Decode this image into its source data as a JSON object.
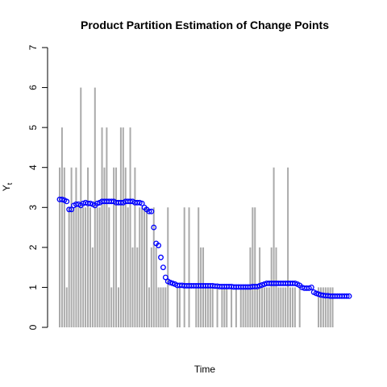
{
  "chart_data": {
    "type": "bar",
    "title": "Product Partition Estimation of Change Points",
    "xlabel": "Time",
    "ylabel": "Y",
    "ylabel_subscript": "t",
    "ylim": [
      0,
      7
    ],
    "yticks": [
      "0",
      "1",
      "2",
      "3",
      "4",
      "5",
      "6",
      "7"
    ],
    "n": 124,
    "series": [
      {
        "name": "",
        "kind": "counts",
        "color": "#aaaaaa",
        "values": [
          4,
          5,
          4,
          1,
          3,
          4,
          3,
          4,
          3,
          6,
          3,
          3,
          4,
          3,
          2,
          6,
          3,
          3,
          5,
          4,
          5,
          3,
          1,
          4,
          4,
          1,
          5,
          5,
          4,
          3,
          5,
          2,
          4,
          2,
          3,
          3,
          3,
          3,
          1,
          2,
          3,
          2,
          1,
          1,
          1,
          1,
          3,
          0,
          0,
          0,
          1,
          1,
          0,
          3,
          0,
          3,
          0,
          0,
          1,
          3,
          2,
          2,
          1,
          1,
          1,
          1,
          0,
          1,
          0,
          1,
          1,
          1,
          0,
          1,
          0,
          1,
          0,
          1,
          1,
          1,
          1,
          2,
          3,
          3,
          1,
          2,
          1,
          1,
          1,
          1,
          2,
          4,
          2,
          1,
          1,
          1,
          1,
          4,
          1,
          1,
          1,
          0,
          1,
          0,
          0,
          0,
          0,
          0,
          0,
          0,
          1,
          1,
          1,
          1,
          1,
          1,
          1,
          0,
          0,
          0,
          0,
          0,
          0,
          0
        ]
      },
      {
        "name": "",
        "kind": "estimate",
        "color": "#0000ff",
        "values": [
          3.2,
          3.2,
          3.18,
          3.15,
          2.95,
          2.95,
          3.05,
          3.08,
          3.08,
          3.05,
          3.1,
          3.12,
          3.1,
          3.1,
          3.08,
          3.05,
          3.1,
          3.12,
          3.15,
          3.15,
          3.15,
          3.15,
          3.15,
          3.15,
          3.12,
          3.12,
          3.12,
          3.12,
          3.15,
          3.15,
          3.15,
          3.15,
          3.12,
          3.12,
          3.12,
          3.1,
          3.0,
          2.95,
          2.9,
          2.9,
          2.5,
          2.1,
          2.05,
          1.75,
          1.5,
          1.25,
          1.15,
          1.12,
          1.1,
          1.08,
          1.05,
          1.05,
          1.05,
          1.04,
          1.04,
          1.04,
          1.04,
          1.04,
          1.04,
          1.04,
          1.04,
          1.04,
          1.04,
          1.04,
          1.04,
          1.04,
          1.03,
          1.03,
          1.02,
          1.02,
          1.02,
          1.02,
          1.02,
          1.02,
          1.01,
          1.01,
          1.01,
          1.01,
          1.01,
          1.01,
          1.01,
          1.01,
          1.02,
          1.02,
          1.02,
          1.04,
          1.06,
          1.08,
          1.1,
          1.1,
          1.1,
          1.1,
          1.1,
          1.1,
          1.1,
          1.1,
          1.1,
          1.1,
          1.1,
          1.1,
          1.1,
          1.08,
          1.05,
          1.0,
          0.98,
          0.98,
          0.98,
          1.0,
          0.88,
          0.85,
          0.83,
          0.81,
          0.8,
          0.79,
          0.79,
          0.78,
          0.78,
          0.78,
          0.78,
          0.78,
          0.78,
          0.78,
          0.78,
          0.78
        ]
      }
    ],
    "grid": false,
    "legend": "none"
  }
}
